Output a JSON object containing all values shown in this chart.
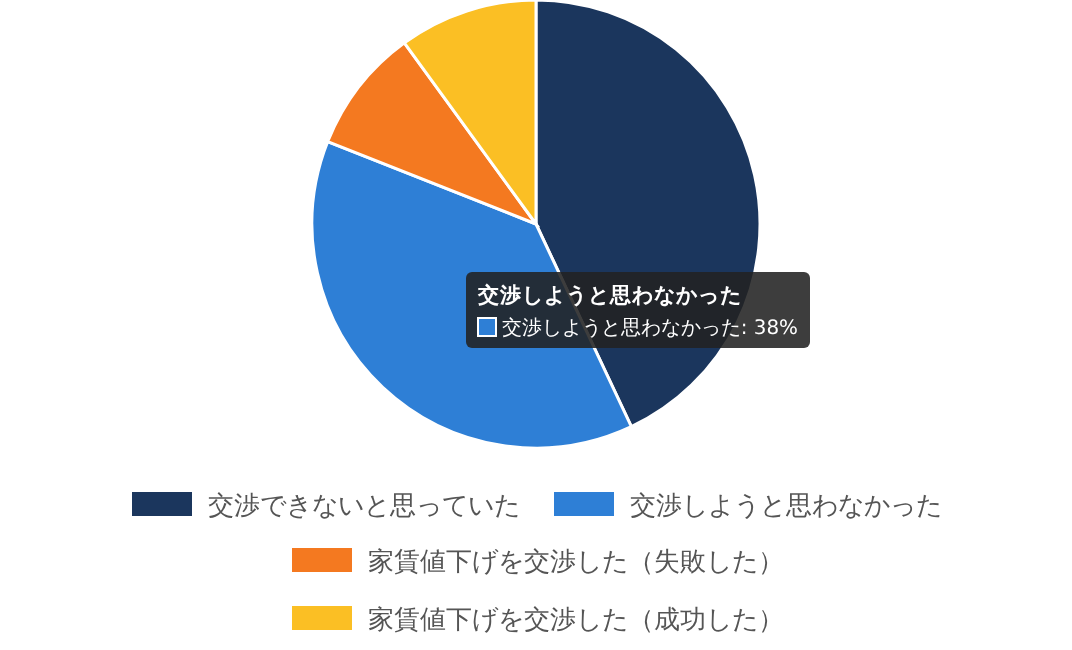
{
  "chart_data": {
    "type": "pie",
    "categories": [
      "交渉できないと思っていた",
      "交渉しようと思わなかった",
      "家賃値下げを交渉した（失敗した）",
      "家賃値下げを交渉した（成功した）"
    ],
    "values": [
      43,
      38,
      9,
      10
    ],
    "colors": [
      "#1b365d",
      "#2e7fd6",
      "#f47920",
      "#fbbf24"
    ],
    "legend": "bottom",
    "annotations": [
      "交渉しようと思わなかった",
      "交渉しようと思わなかった: 38%"
    ]
  }
}
